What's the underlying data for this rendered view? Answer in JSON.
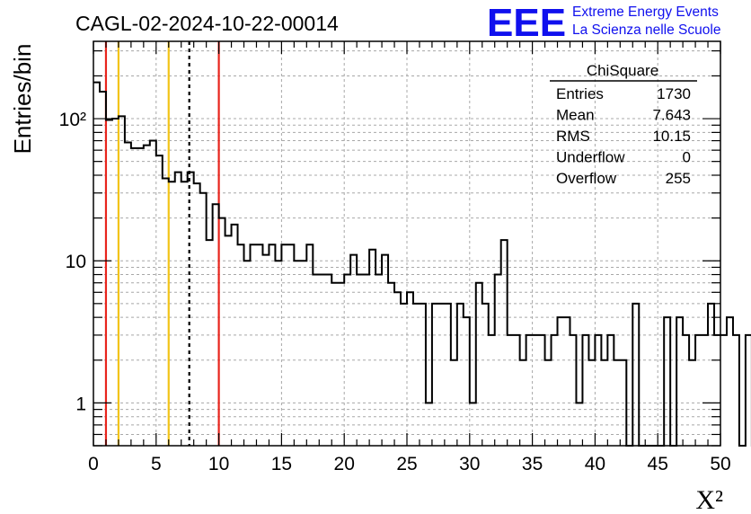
{
  "chart_data": {
    "type": "histogram",
    "title": "CAGL-02-2024-10-22-00014",
    "xlabel": "X²",
    "ylabel": "Entries/bin",
    "xlim": [
      0,
      50
    ],
    "ylim": [
      0.5,
      350
    ],
    "log_y": true,
    "grid": true,
    "bin_width": 0.5,
    "x_ticks": [
      0,
      5,
      10,
      15,
      20,
      25,
      30,
      35,
      40,
      45,
      50
    ],
    "x_tick_labels": [
      "0",
      "5",
      "10",
      "15",
      "20",
      "25",
      "30",
      "35",
      "40",
      "45",
      "50"
    ],
    "y_ticks": [
      {
        "value": 1,
        "label": "1"
      },
      {
        "value": 10,
        "label": "10"
      },
      {
        "value": 100,
        "label": "10²"
      }
    ],
    "counts": [
      180,
      155,
      98,
      100,
      104,
      68,
      62,
      62,
      65,
      70,
      55,
      38,
      36,
      42,
      36,
      42,
      35,
      30,
      14,
      25,
      20,
      15,
      18,
      13,
      10,
      13,
      13,
      11,
      13,
      10,
      13,
      13,
      10,
      10,
      13,
      8,
      8,
      8,
      7,
      7,
      8,
      11,
      8,
      8,
      12,
      8,
      11,
      7,
      6,
      5,
      6,
      5,
      5,
      1,
      5,
      5,
      5,
      2,
      5,
      4,
      1,
      7,
      5,
      3,
      8,
      14,
      3,
      3,
      2,
      3,
      3,
      3,
      2,
      3,
      4,
      4,
      3,
      1,
      3,
      2,
      3,
      2,
      3,
      2,
      2,
      0,
      5,
      0,
      0,
      0,
      0,
      4,
      0,
      4,
      3,
      2,
      3,
      3,
      5,
      3,
      3,
      4,
      3,
      0,
      3,
      0,
      3,
      0,
      5,
      0,
      3,
      0,
      3,
      1,
      4,
      3,
      3,
      0,
      4,
      3,
      3
    ],
    "vertical_lines": [
      {
        "x": 1,
        "color": "#e8241c",
        "style": "solid"
      },
      {
        "x": 2,
        "color": "#f2c418",
        "style": "solid"
      },
      {
        "x": 6,
        "color": "#f2c418",
        "style": "solid"
      },
      {
        "x": 7.643,
        "color": "#000000",
        "style": "dashed"
      },
      {
        "x": 10,
        "color": "#e8241c",
        "style": "solid"
      }
    ],
    "legend_placement": "top-right"
  },
  "stats_box": {
    "title": "ChiSquare",
    "rows": [
      {
        "label": "Entries",
        "value": "1730"
      },
      {
        "label": "Mean",
        "value": "7.643"
      },
      {
        "label": "RMS",
        "value": "10.15"
      },
      {
        "label": "Underflow",
        "value": "0"
      },
      {
        "label": "Overflow",
        "value": "255"
      }
    ]
  },
  "logo": {
    "mark": "EEE",
    "line1": "Extreme Energy Events",
    "line2": "La Scienza nelle Scuole",
    "color": "#1010ee"
  }
}
